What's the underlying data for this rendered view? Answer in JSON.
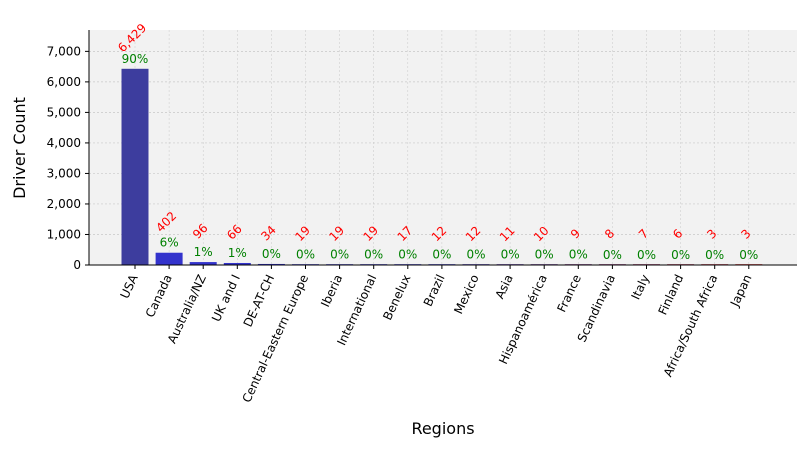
{
  "chart_data": {
    "type": "bar",
    "title": "",
    "xlabel": "Regions",
    "ylabel": "Driver Count",
    "ylim": [
      0,
      7700
    ],
    "yticks": [
      0,
      1000,
      2000,
      3000,
      4000,
      5000,
      6000,
      7000
    ],
    "ytick_labels": [
      "0",
      "1,000",
      "2,000",
      "3,000",
      "4,000",
      "5,000",
      "6,000",
      "7,000"
    ],
    "grid": true,
    "categories": [
      "USA",
      "Canada",
      "Australia/NZ",
      "UK and I",
      "DE-AT-CH",
      "Central-Eastern Europe",
      "Iberia",
      "International",
      "Benelux",
      "Brazil",
      "Mexico",
      "Asia",
      "Hispanoamérica",
      "France",
      "Scandinavia",
      "Italy",
      "Finland",
      "Africa/South Africa",
      "Japan"
    ],
    "values": [
      6429,
      402,
      96,
      66,
      34,
      19,
      19,
      19,
      17,
      12,
      12,
      11,
      10,
      9,
      8,
      7,
      6,
      3,
      3
    ],
    "count_labels": [
      "6,429",
      "402",
      "96",
      "66",
      "34",
      "19",
      "19",
      "19",
      "17",
      "12",
      "12",
      "11",
      "10",
      "9",
      "8",
      "7",
      "6",
      "3",
      "3"
    ],
    "percent_labels": [
      "90%",
      "6%",
      "1%",
      "1%",
      "0%",
      "0%",
      "0%",
      "0%",
      "0%",
      "0%",
      "0%",
      "0%",
      "0%",
      "0%",
      "0%",
      "0%",
      "0%",
      "0%",
      "0%"
    ],
    "colors": {
      "bar_start": "#3d3d9e",
      "bar_mid": "#3333cc",
      "bar_end": "#cc2222",
      "count_label": "#ff0000",
      "percent_label": "#008000",
      "plot_background": "#f2f2f2",
      "grid": "#c8c8c8"
    }
  }
}
